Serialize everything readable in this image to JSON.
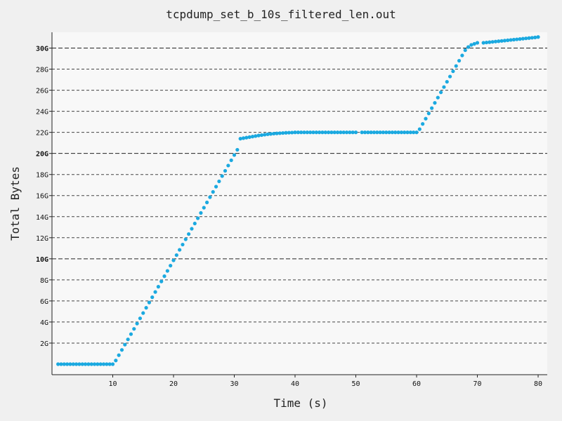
{
  "chart_data": {
    "type": "scatter",
    "title": "tcpdump_set_b_10s_filtered_len.out",
    "xlabel": "Time (s)",
    "ylabel": "Total Bytes",
    "xlim": [
      0,
      81.5
    ],
    "ylim": [
      -1.0,
      31.5
    ],
    "x_ticks": [
      {
        "value": 10,
        "label": "10"
      },
      {
        "value": 20,
        "label": "20"
      },
      {
        "value": 30,
        "label": "30"
      },
      {
        "value": 40,
        "label": "40"
      },
      {
        "value": 50,
        "label": "50"
      },
      {
        "value": 60,
        "label": "60"
      },
      {
        "value": 70,
        "label": "70"
      },
      {
        "value": 80,
        "label": "80"
      }
    ],
    "y_ticks": [
      {
        "value": 2,
        "label": "2G",
        "major": false
      },
      {
        "value": 4,
        "label": "4G",
        "major": false
      },
      {
        "value": 6,
        "label": "6G",
        "major": false
      },
      {
        "value": 8,
        "label": "8G",
        "major": false
      },
      {
        "value": 10,
        "label": "10G",
        "major": true
      },
      {
        "value": 12,
        "label": "12G",
        "major": false
      },
      {
        "value": 14,
        "label": "14G",
        "major": false
      },
      {
        "value": 16,
        "label": "16G",
        "major": false
      },
      {
        "value": 18,
        "label": "18G",
        "major": false
      },
      {
        "value": 20,
        "label": "20G",
        "major": true
      },
      {
        "value": 22,
        "label": "22G",
        "major": false
      },
      {
        "value": 24,
        "label": "24G",
        "major": false
      },
      {
        "value": 26,
        "label": "26G",
        "major": false
      },
      {
        "value": 28,
        "label": "28G",
        "major": false
      },
      {
        "value": 30,
        "label": "30G",
        "major": true
      }
    ],
    "grid": true,
    "point_color": "#1ba9e0",
    "series": [
      {
        "x": [
          1.0,
          1.5,
          2.0,
          2.5,
          3.0,
          3.5,
          4.0,
          4.5,
          5.0,
          5.5,
          6.0,
          6.5,
          7.0,
          7.5,
          8.0,
          8.5,
          9.0,
          9.5,
          10.0,
          10.5,
          11.0,
          11.5,
          12.0,
          12.5,
          13.0,
          13.5,
          14.0,
          14.5,
          15.0,
          15.5,
          16.0,
          16.5,
          17.0,
          17.5,
          18.0,
          18.5,
          19.0,
          19.5,
          20.0,
          20.5,
          21.0,
          21.5,
          22.0,
          22.5,
          23.0,
          23.5,
          24.0,
          24.5,
          25.0,
          25.5,
          26.0,
          26.5,
          27.0,
          27.5,
          28.0,
          28.5,
          29.0,
          29.5,
          30.0,
          30.5,
          31.0,
          31.5,
          32.0,
          32.5,
          33.0,
          33.5,
          34.0,
          34.5,
          35.0,
          35.5,
          36.0,
          36.5,
          37.0,
          37.5,
          38.0,
          38.5,
          39.0,
          39.5,
          40.0,
          40.5,
          41.0,
          41.5,
          42.0,
          42.5,
          43.0,
          43.5,
          44.0,
          44.5,
          45.0,
          45.5,
          46.0,
          46.5,
          47.0,
          47.5,
          48.0,
          48.5,
          49.0,
          49.5,
          50.0,
          51.0,
          51.5,
          52.0,
          52.5,
          53.0,
          53.5,
          54.0,
          54.5,
          55.0,
          55.5,
          56.0,
          56.5,
          57.0,
          57.5,
          58.0,
          58.5,
          59.0,
          59.5,
          60.0,
          60.5,
          61.0,
          61.5,
          62.0,
          62.5,
          63.0,
          63.5,
          64.0,
          64.5,
          65.0,
          65.5,
          66.0,
          66.5,
          67.0,
          67.5,
          68.0,
          68.5,
          69.0,
          69.5,
          70.0,
          71.0,
          71.5,
          72.0,
          72.5,
          73.0,
          73.5,
          74.0,
          74.5,
          75.0,
          75.5,
          76.0,
          76.5,
          77.0,
          77.5,
          78.0,
          78.5,
          79.0,
          79.5,
          80.0
        ],
        "y": [
          0,
          0,
          0,
          0,
          0,
          0,
          0,
          0,
          0,
          0,
          0,
          0,
          0,
          0,
          0,
          0,
          0,
          0,
          0,
          0.35,
          0.85,
          1.35,
          1.85,
          2.35,
          2.85,
          3.35,
          3.85,
          4.35,
          4.85,
          5.35,
          5.85,
          6.35,
          6.85,
          7.35,
          7.85,
          8.35,
          8.85,
          9.35,
          9.85,
          10.35,
          10.85,
          11.35,
          11.85,
          12.35,
          12.85,
          13.35,
          13.85,
          14.35,
          14.85,
          15.35,
          15.85,
          16.35,
          16.85,
          17.35,
          17.85,
          18.35,
          18.85,
          19.35,
          19.85,
          20.35,
          21.4,
          21.45,
          21.5,
          21.55,
          21.6,
          21.65,
          21.7,
          21.74,
          21.78,
          21.82,
          21.85,
          21.88,
          21.9,
          21.92,
          21.94,
          21.96,
          21.97,
          21.98,
          22.0,
          22.0,
          22.0,
          22.0,
          22.0,
          22.0,
          22.0,
          22.0,
          22.0,
          22.0,
          22.0,
          22.0,
          22.0,
          22.0,
          22.0,
          22.0,
          22.0,
          22.0,
          22.0,
          22.0,
          22.0,
          22.0,
          22.0,
          22.0,
          22.0,
          22.0,
          22.0,
          22.0,
          22.0,
          22.0,
          22.0,
          22.0,
          22.0,
          22.0,
          22.0,
          22.0,
          22.0,
          22.0,
          22.0,
          22.0,
          22.3,
          22.8,
          23.3,
          23.8,
          24.3,
          24.8,
          25.3,
          25.8,
          26.3,
          26.8,
          27.3,
          27.8,
          28.3,
          28.8,
          29.3,
          29.8,
          30.1,
          30.3,
          30.4,
          30.5,
          30.5,
          30.53,
          30.56,
          30.59,
          30.62,
          30.65,
          30.68,
          30.71,
          30.74,
          30.77,
          30.8,
          30.83,
          30.86,
          30.89,
          30.92,
          30.95,
          30.98,
          31.01,
          31.05
        ]
      }
    ]
  }
}
